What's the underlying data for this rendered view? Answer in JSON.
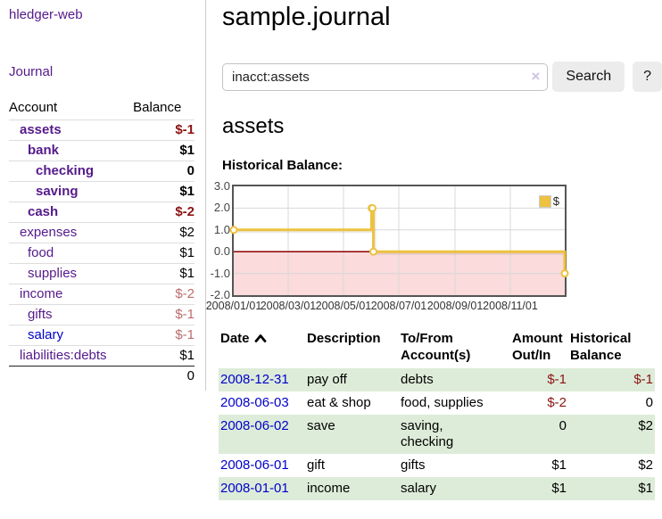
{
  "colors": {
    "link_purple": "#551a8b",
    "link_blue": "#0000cc",
    "negative_strong": "#8b1414",
    "negative_muted": "#bb6d6d",
    "row_green": "#ddecd8",
    "chart_line": "#edc240",
    "chart_negative_fill": "#fbdbdb",
    "chart_zero_line": "#8b0000",
    "chart_grid": "#d8d8d8",
    "chart_border": "#555555"
  },
  "sidebar": {
    "app_title": "hledger-web",
    "journal_label": "Journal",
    "accounts": {
      "header_account": "Account",
      "header_balance": "Balance",
      "rows": [
        {
          "name": "assets",
          "balance": "$-1",
          "indent": 0,
          "bold": true,
          "balance_tone": "negative-strong",
          "link_tone": "purple"
        },
        {
          "name": "bank",
          "balance": "$1",
          "indent": 1,
          "bold": true,
          "balance_tone": "normal",
          "link_tone": "purple"
        },
        {
          "name": "checking",
          "balance": "0",
          "indent": 2,
          "bold": true,
          "balance_tone": "normal",
          "link_tone": "purple"
        },
        {
          "name": "saving",
          "balance": "$1",
          "indent": 2,
          "bold": true,
          "balance_tone": "normal",
          "link_tone": "purple"
        },
        {
          "name": "cash",
          "balance": "$-2",
          "indent": 1,
          "bold": true,
          "balance_tone": "negative-strong",
          "link_tone": "purple"
        },
        {
          "name": "expenses",
          "balance": "$2",
          "indent": 0,
          "bold": false,
          "balance_tone": "normal",
          "link_tone": "purple"
        },
        {
          "name": "food",
          "balance": "$1",
          "indent": 1,
          "bold": false,
          "balance_tone": "normal",
          "link_tone": "purple"
        },
        {
          "name": "supplies",
          "balance": "$1",
          "indent": 1,
          "bold": false,
          "balance_tone": "normal",
          "link_tone": "purple"
        },
        {
          "name": "income",
          "balance": "$-2",
          "indent": 0,
          "bold": false,
          "balance_tone": "negative-muted",
          "link_tone": "purple"
        },
        {
          "name": "gifts",
          "balance": "$-1",
          "indent": 1,
          "bold": false,
          "balance_tone": "negative-muted",
          "link_tone": "purple"
        },
        {
          "name": "salary",
          "balance": "$-1",
          "indent": 1,
          "bold": false,
          "balance_tone": "negative-muted",
          "link_tone": "blue"
        },
        {
          "name": "liabilities:debts",
          "balance": "$1",
          "indent": 0,
          "bold": false,
          "balance_tone": "normal",
          "link_tone": "purple"
        }
      ],
      "total": "0"
    }
  },
  "main": {
    "title": "sample.journal",
    "search": {
      "value": "inacct:assets",
      "clear_icon": "×",
      "button_label": "Search",
      "help_label": "?"
    },
    "account_heading": "assets",
    "chart_label": "Historical Balance:"
  },
  "chart_data": {
    "type": "line",
    "step": true,
    "title": "Historical Balance",
    "series": [
      {
        "name": "$",
        "color": "#edc240",
        "points": [
          [
            "2008-01-01",
            1
          ],
          [
            "2008-06-01",
            2
          ],
          [
            "2008-06-02",
            2
          ],
          [
            "2008-06-03",
            0
          ],
          [
            "2008-12-31",
            -1
          ]
        ]
      }
    ],
    "x_ticks": [
      "2008/01/01",
      "2008/03/01",
      "2008/05/01",
      "2008/07/01",
      "2008/09/01",
      "2008/11/01"
    ],
    "y_ticks": [
      "3.0",
      "2.0",
      "1.0",
      "0.0",
      "-1.0",
      "-2.0"
    ],
    "xlim": [
      "2008-01-01",
      "2008-12-31"
    ],
    "ylim": [
      -2,
      3
    ],
    "grid": true,
    "legend": {
      "label": "$",
      "position": "top-right"
    },
    "zero_line_color": "#8b0000",
    "negative_fill": "#fbdbdb",
    "grid_color": "#d8d8d8"
  },
  "register": {
    "headers": [
      {
        "label": "Date",
        "sort": "asc",
        "align": "left"
      },
      {
        "label": "Description",
        "align": "left"
      },
      {
        "label": "To/From",
        "label2": "Account(s)",
        "align": "left"
      },
      {
        "label": "Amount",
        "label2": "Out/In",
        "align": "right"
      },
      {
        "label": "Historical",
        "label2": "Balance",
        "align": "right"
      }
    ],
    "rows": [
      {
        "date": "2008-12-31",
        "description": "pay off",
        "accounts": [
          "debts"
        ],
        "amount": "$-1",
        "amount_negative": true,
        "balance": "$-1",
        "balance_negative": true
      },
      {
        "date": "2008-06-03",
        "description": "eat & shop",
        "accounts": [
          "food, supplies"
        ],
        "amount": "$-2",
        "amount_negative": true,
        "balance": "0",
        "balance_negative": false
      },
      {
        "date": "2008-06-02",
        "description": "save",
        "accounts": [
          "saving,",
          "checking"
        ],
        "amount": "0",
        "amount_negative": false,
        "balance": "$2",
        "balance_negative": false
      },
      {
        "date": "2008-06-01",
        "description": "gift",
        "accounts": [
          "gifts"
        ],
        "amount": "$1",
        "amount_negative": false,
        "balance": "$2",
        "balance_negative": false
      },
      {
        "date": "2008-01-01",
        "description": "income",
        "accounts": [
          "salary"
        ],
        "amount": "$1",
        "amount_negative": false,
        "balance": "$1",
        "balance_negative": false
      }
    ]
  }
}
